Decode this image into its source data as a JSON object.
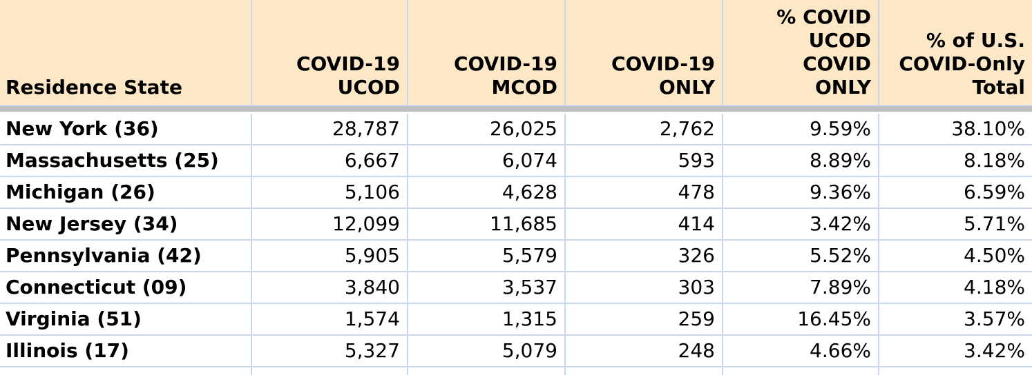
{
  "colors": {
    "header_bg": "#FCE8C7",
    "gridline": "#CBD7EC",
    "divider_bar": "#BFBFBF",
    "text": "#000000",
    "row_bg": "#FFFFFF"
  },
  "table": {
    "columns": [
      {
        "label": "Residence State",
        "align": "left"
      },
      {
        "label": "COVID-19\nUCOD",
        "align": "right"
      },
      {
        "label": "COVID-19\nMCOD",
        "align": "right"
      },
      {
        "label": "COVID-19\nONLY",
        "align": "right"
      },
      {
        "label": "% COVID\nUCOD\nCOVID\nONLY",
        "align": "right"
      },
      {
        "label": "% of U.S.\nCOVID-Only\nTotal",
        "align": "right"
      }
    ],
    "rows": [
      {
        "state": "New York (36)",
        "values": [
          "28,787",
          "26,025",
          "2,762",
          "9.59%",
          "38.10%"
        ]
      },
      {
        "state": "Massachusetts (25)",
        "values": [
          "6,667",
          "6,074",
          "593",
          "8.89%",
          "8.18%"
        ]
      },
      {
        "state": "Michigan (26)",
        "values": [
          "5,106",
          "4,628",
          "478",
          "9.36%",
          "6.59%"
        ]
      },
      {
        "state": "New Jersey (34)",
        "values": [
          "12,099",
          "11,685",
          "414",
          "3.42%",
          "5.71%"
        ]
      },
      {
        "state": "Pennsylvania (42)",
        "values": [
          "5,905",
          "5,579",
          "326",
          "5.52%",
          "4.50%"
        ]
      },
      {
        "state": "Connecticut (09)",
        "values": [
          "3,840",
          "3,537",
          "303",
          "7.89%",
          "4.18%"
        ]
      },
      {
        "state": "Virginia (51)",
        "values": [
          "1,574",
          "1,315",
          "259",
          "16.45%",
          "3.57%"
        ]
      },
      {
        "state": "Illinois (17)",
        "values": [
          "5,327",
          "5,079",
          "248",
          "4.66%",
          "3.42%"
        ]
      }
    ]
  }
}
